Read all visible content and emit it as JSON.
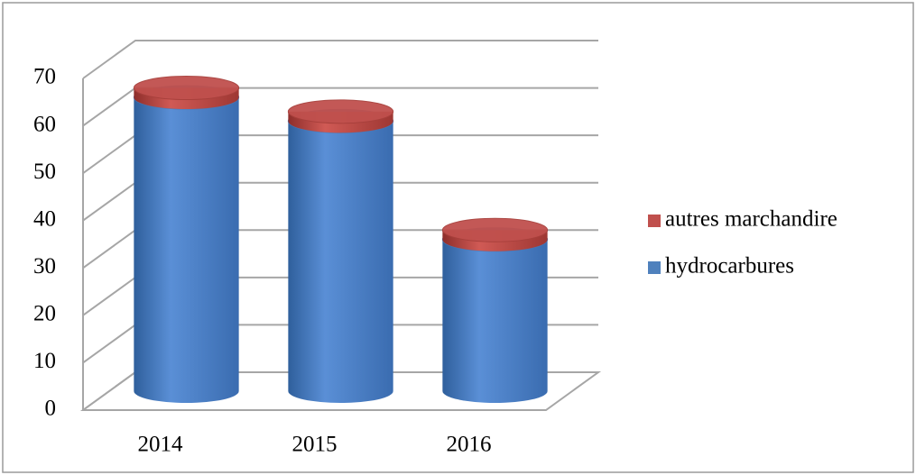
{
  "chart_data": {
    "type": "bar3d",
    "categories": [
      "2014",
      "2015",
      "2016"
    ],
    "series": [
      {
        "name": "hydrocarbures",
        "color": "#4f81bd",
        "values": [
          62,
          57,
          32
        ]
      },
      {
        "name": "autres marchandire",
        "color": "#c0504d",
        "values": [
          2,
          2,
          2
        ]
      }
    ],
    "stacked": true,
    "ylim": [
      0,
      70
    ],
    "yticks": [
      0,
      10,
      20,
      30,
      40,
      50,
      60,
      70
    ],
    "grid": true,
    "legend": "right"
  }
}
